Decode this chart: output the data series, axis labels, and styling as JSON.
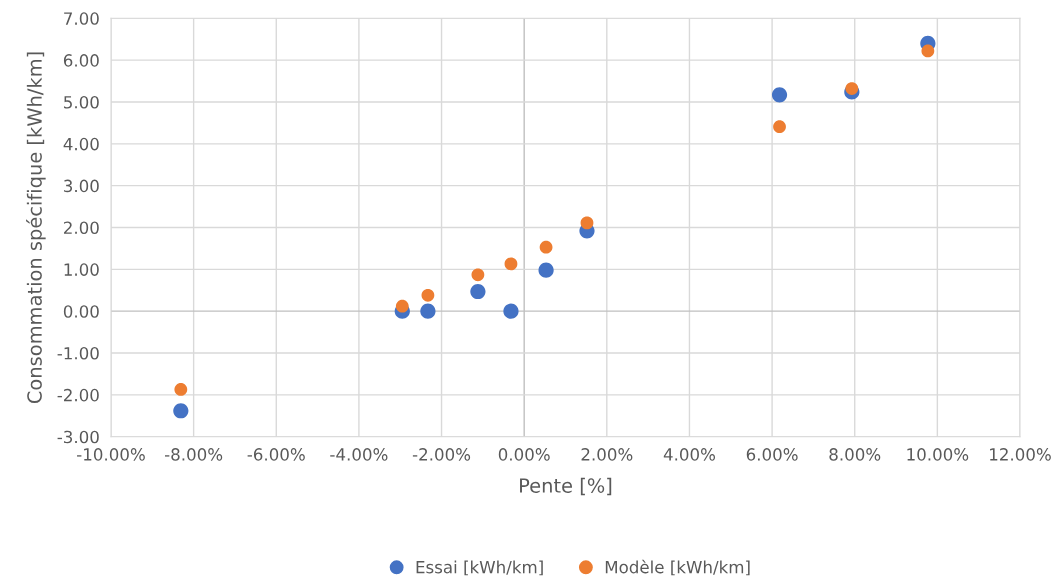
{
  "chart_data": {
    "type": "scatter",
    "xlabel": "Pente [%]",
    "ylabel": "Consommation spécifique [kWh/km]",
    "x": [
      -8.31,
      -2.95,
      -2.33,
      -1.12,
      -0.32,
      0.53,
      1.52,
      6.18,
      7.93,
      9.77
    ],
    "series": [
      {
        "name": "Essai [kWh/km]",
        "color": "#4472c4",
        "values": [
          -2.38,
          0.0,
          0.0,
          0.47,
          0.0,
          0.98,
          1.92,
          5.17,
          5.24,
          6.4
        ]
      },
      {
        "name": "Modèle [kWh/km]",
        "color": "#ed7d31",
        "values": [
          -1.87,
          0.12,
          0.38,
          0.87,
          1.13,
          1.53,
          2.11,
          4.41,
          5.32,
          6.22
        ]
      }
    ],
    "xlim": [
      -10,
      12
    ],
    "xticks": [
      {
        "value": -10,
        "label": "-10.00%"
      },
      {
        "value": -8,
        "label": "-8.00%"
      },
      {
        "value": -6,
        "label": "-6.00%"
      },
      {
        "value": -4,
        "label": "-4.00%"
      },
      {
        "value": -2,
        "label": "-2.00%"
      },
      {
        "value": 0,
        "label": "0.00%"
      },
      {
        "value": 2,
        "label": "2.00%"
      },
      {
        "value": 4,
        "label": "4.00%"
      },
      {
        "value": 6,
        "label": "6.00%"
      },
      {
        "value": 8,
        "label": "8.00%"
      },
      {
        "value": 10,
        "label": "10.00%"
      },
      {
        "value": 12,
        "label": "12.00%"
      }
    ],
    "ylim": [
      -3,
      7
    ],
    "yticks": [
      {
        "value": -3,
        "label": "-3.00"
      },
      {
        "value": -2,
        "label": "-2.00"
      },
      {
        "value": -1,
        "label": "-1.00"
      },
      {
        "value": 0,
        "label": "0.00"
      },
      {
        "value": 1,
        "label": "1.00"
      },
      {
        "value": 2,
        "label": "2.00"
      },
      {
        "value": 3,
        "label": "3.00"
      },
      {
        "value": 4,
        "label": "4.00"
      },
      {
        "value": 5,
        "label": "5.00"
      },
      {
        "value": 6,
        "label": "6.00"
      },
      {
        "value": 7,
        "label": "7.00"
      }
    ],
    "grid": true,
    "legend": "bottom",
    "marker": "circle"
  }
}
